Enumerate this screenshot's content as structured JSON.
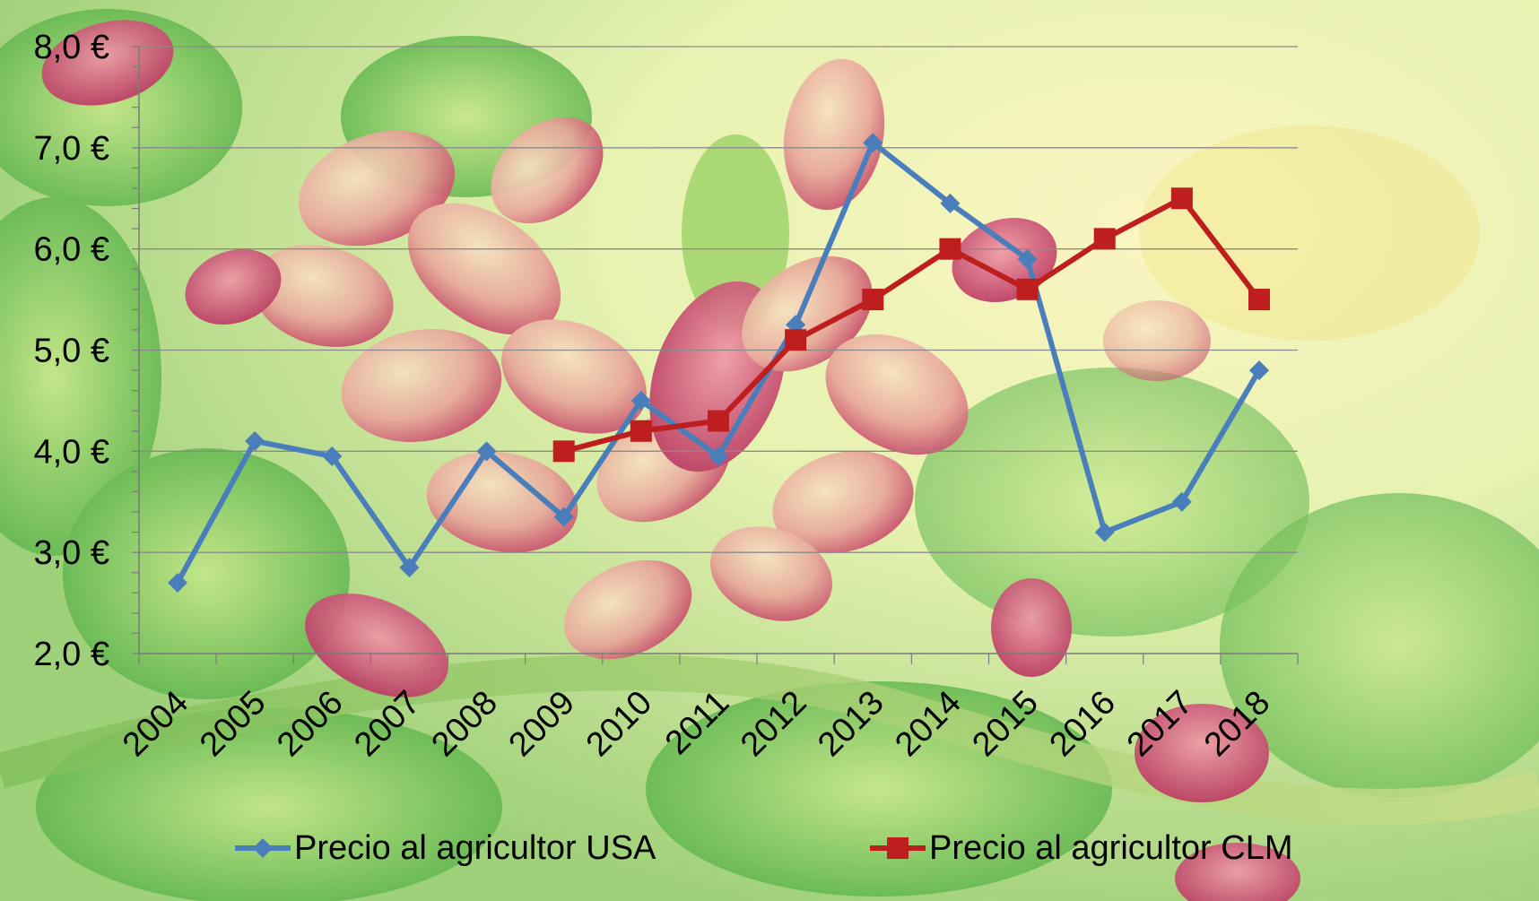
{
  "chart_data": {
    "type": "line",
    "title": "",
    "xlabel": "",
    "ylabel": "",
    "categories": [
      "2004",
      "2005",
      "2006",
      "2007",
      "2008",
      "2009",
      "2010",
      "2011",
      "2012",
      "2013",
      "2014",
      "2015",
      "2016",
      "2017",
      "2018"
    ],
    "ylim": [
      2.0,
      8.0
    ],
    "yticks": [
      2.0,
      3.0,
      4.0,
      5.0,
      6.0,
      7.0,
      8.0
    ],
    "ytick_labels": [
      "2,0 €",
      "3,0 €",
      "4,0 €",
      "5,0 €",
      "6,0 €",
      "7,0 €",
      "8,0 €"
    ],
    "grid": true,
    "legend_position": "bottom",
    "series": [
      {
        "name": "Precio al agricultor USA",
        "color": "#4a7ebb",
        "marker": "diamond",
        "values": [
          2.7,
          4.1,
          3.95,
          2.85,
          4.0,
          3.35,
          4.5,
          3.95,
          5.25,
          7.05,
          6.45,
          5.9,
          3.2,
          3.5,
          4.8
        ]
      },
      {
        "name": "Precio al agricultor CLM",
        "color": "#be1e1e",
        "marker": "square",
        "values": [
          null,
          null,
          null,
          null,
          null,
          4.0,
          4.2,
          4.3,
          5.1,
          5.5,
          6.0,
          5.6,
          6.1,
          6.5,
          5.5
        ]
      }
    ]
  }
}
